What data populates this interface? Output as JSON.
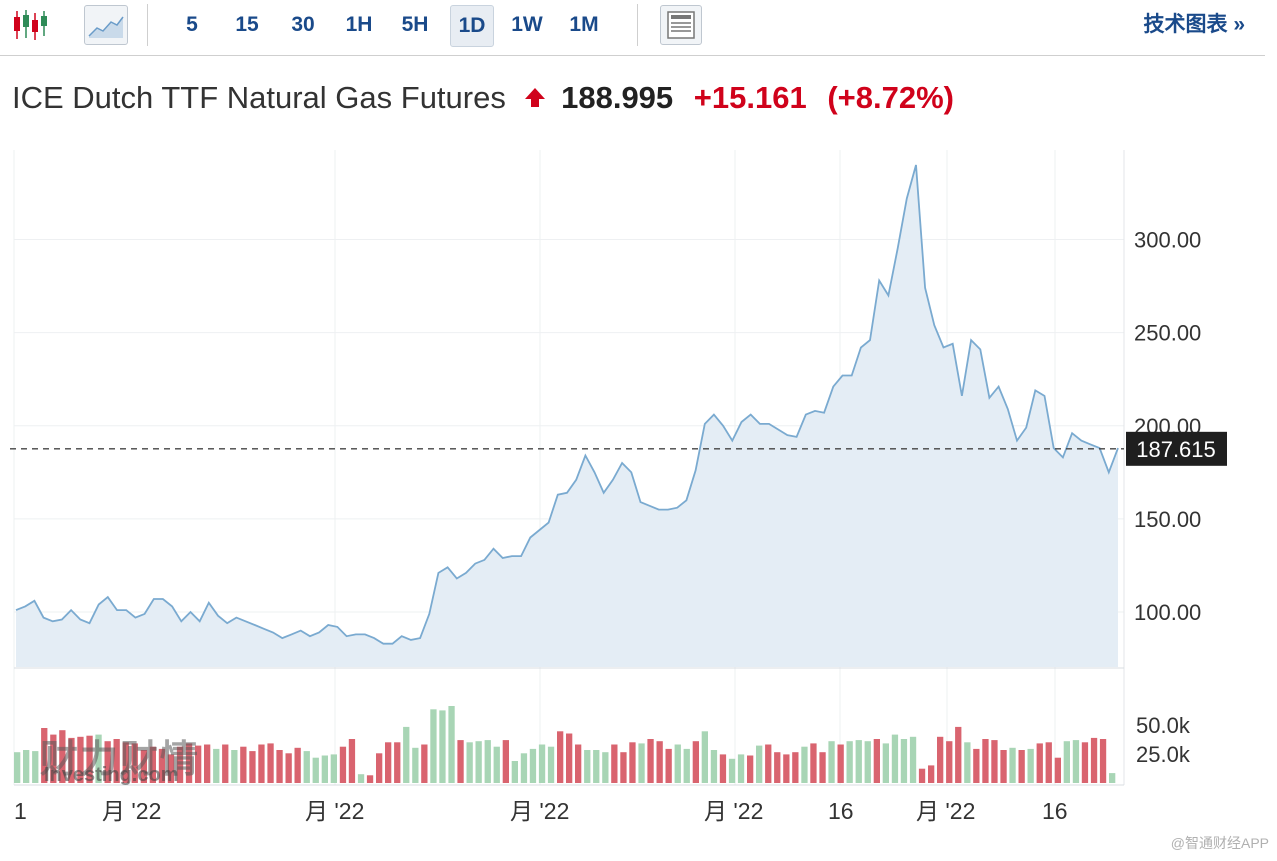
{
  "toolbar": {
    "intervals": [
      "5",
      "15",
      "30",
      "1H",
      "5H",
      "1D",
      "1W",
      "1M"
    ],
    "active_interval": "1D",
    "tech_chart_label": "技术图表 »"
  },
  "header": {
    "name": "ICE Dutch TTF Natural Gas Futures",
    "price": "188.995",
    "change": "+15.161",
    "change_pct": "(+8.72%)",
    "direction": "up",
    "up_color": "#d0021b"
  },
  "watermark": {
    "brand_cn": "财力财情",
    "brand_en": "Investing.com",
    "source": "@智通财经APP"
  },
  "chart_data": {
    "type": "area",
    "series_color": "#7aaad0",
    "fill_color": "#e4edf5",
    "last_price_label": "187.615",
    "last_price": 187.615,
    "y_ticks": [
      100,
      150,
      200,
      250,
      300
    ],
    "y_tick_labels": [
      "100.00",
      "150.00",
      "200.00",
      "250.00",
      "300.00"
    ],
    "x_labels": [
      "1",
      "月 '22",
      "月 '22",
      "月 '22",
      "月 '22",
      "16",
      "月 '22",
      "16"
    ],
    "grid": true,
    "values": [
      101,
      103,
      106,
      97,
      95,
      96,
      101,
      96,
      94,
      104,
      108,
      101,
      101,
      97,
      99,
      107,
      107,
      103,
      95,
      100,
      95,
      105,
      98,
      94,
      97,
      95,
      93,
      91,
      89,
      86,
      88,
      90,
      87,
      89,
      93,
      92,
      87,
      88,
      88,
      86,
      83,
      83,
      87,
      85,
      86,
      99,
      121,
      124,
      118,
      121,
      126,
      128,
      134,
      129,
      130,
      130,
      140,
      144,
      148,
      163,
      164,
      171,
      184,
      175,
      164,
      171,
      180,
      175,
      159,
      157,
      155,
      155,
      156,
      160,
      176,
      201,
      206,
      200,
      192,
      202,
      206,
      201,
      201,
      198,
      195,
      194,
      206,
      208,
      207,
      221,
      227,
      227,
      242,
      246,
      278,
      270,
      295,
      322,
      340,
      274,
      254,
      242,
      244,
      216,
      246,
      241,
      215,
      221,
      209,
      192,
      199,
      219,
      216,
      188,
      183,
      196,
      192,
      190,
      188,
      175,
      188
    ],
    "volume": {
      "y_tick_labels": [
        "50.0k",
        "25.0k"
      ],
      "y_ticks": [
        50000,
        25000
      ],
      "up_color": "#a8d5b5",
      "down_color": "#d9646f",
      "bars": [
        {
          "v": 28000,
          "up": true
        },
        {
          "v": 30000,
          "up": true
        },
        {
          "v": 29000,
          "up": true
        },
        {
          "v": 50000,
          "up": false
        },
        {
          "v": 44000,
          "up": false
        },
        {
          "v": 48000,
          "up": false
        },
        {
          "v": 41000,
          "up": false
        },
        {
          "v": 42000,
          "up": false
        },
        {
          "v": 43000,
          "up": false
        },
        {
          "v": 44000,
          "up": true
        },
        {
          "v": 38000,
          "up": false
        },
        {
          "v": 40000,
          "up": false
        },
        {
          "v": 37000,
          "up": false
        },
        {
          "v": 36000,
          "up": false
        },
        {
          "v": 30000,
          "up": false
        },
        {
          "v": 33000,
          "up": false
        },
        {
          "v": 31000,
          "up": false
        },
        {
          "v": 26000,
          "up": false
        },
        {
          "v": 33000,
          "up": false
        },
        {
          "v": 36000,
          "up": false
        },
        {
          "v": 34000,
          "up": false
        },
        {
          "v": 35000,
          "up": false
        },
        {
          "v": 31000,
          "up": true
        },
        {
          "v": 35000,
          "up": false
        },
        {
          "v": 30000,
          "up": true
        },
        {
          "v": 33000,
          "up": false
        },
        {
          "v": 29000,
          "up": false
        },
        {
          "v": 35000,
          "up": false
        },
        {
          "v": 36000,
          "up": false
        },
        {
          "v": 30000,
          "up": false
        },
        {
          "v": 27000,
          "up": false
        },
        {
          "v": 32000,
          "up": false
        },
        {
          "v": 29000,
          "up": true
        },
        {
          "v": 23000,
          "up": true
        },
        {
          "v": 25000,
          "up": true
        },
        {
          "v": 26000,
          "up": true
        },
        {
          "v": 33000,
          "up": false
        },
        {
          "v": 40000,
          "up": false
        },
        {
          "v": 8000,
          "up": true
        },
        {
          "v": 7000,
          "up": false
        },
        {
          "v": 27000,
          "up": false
        },
        {
          "v": 37000,
          "up": false
        },
        {
          "v": 37000,
          "up": false
        },
        {
          "v": 51000,
          "up": true
        },
        {
          "v": 32000,
          "up": true
        },
        {
          "v": 35000,
          "up": false
        },
        {
          "v": 67000,
          "up": true
        },
        {
          "v": 66000,
          "up": true
        },
        {
          "v": 70000,
          "up": true
        },
        {
          "v": 39000,
          "up": false
        },
        {
          "v": 37000,
          "up": true
        },
        {
          "v": 38000,
          "up": true
        },
        {
          "v": 39000,
          "up": true
        },
        {
          "v": 33000,
          "up": true
        },
        {
          "v": 39000,
          "up": false
        },
        {
          "v": 20000,
          "up": true
        },
        {
          "v": 27000,
          "up": true
        },
        {
          "v": 31000,
          "up": true
        },
        {
          "v": 35000,
          "up": true
        },
        {
          "v": 33000,
          "up": true
        },
        {
          "v": 47000,
          "up": false
        },
        {
          "v": 45000,
          "up": false
        },
        {
          "v": 35000,
          "up": false
        },
        {
          "v": 30000,
          "up": true
        },
        {
          "v": 30000,
          "up": true
        },
        {
          "v": 28000,
          "up": true
        },
        {
          "v": 35000,
          "up": false
        },
        {
          "v": 28000,
          "up": false
        },
        {
          "v": 37000,
          "up": false
        },
        {
          "v": 36000,
          "up": true
        },
        {
          "v": 40000,
          "up": false
        },
        {
          "v": 38000,
          "up": false
        },
        {
          "v": 31000,
          "up": false
        },
        {
          "v": 35000,
          "up": true
        },
        {
          "v": 31000,
          "up": true
        },
        {
          "v": 38000,
          "up": false
        },
        {
          "v": 47000,
          "up": true
        },
        {
          "v": 30000,
          "up": true
        },
        {
          "v": 26000,
          "up": false
        },
        {
          "v": 22000,
          "up": true
        },
        {
          "v": 26000,
          "up": true
        },
        {
          "v": 25000,
          "up": false
        },
        {
          "v": 34000,
          "up": true
        },
        {
          "v": 35000,
          "up": false
        },
        {
          "v": 28000,
          "up": false
        },
        {
          "v": 26000,
          "up": false
        },
        {
          "v": 28000,
          "up": false
        },
        {
          "v": 33000,
          "up": true
        },
        {
          "v": 36000,
          "up": false
        },
        {
          "v": 28000,
          "up": false
        },
        {
          "v": 38000,
          "up": true
        },
        {
          "v": 35000,
          "up": false
        },
        {
          "v": 38000,
          "up": true
        },
        {
          "v": 39000,
          "up": true
        },
        {
          "v": 38000,
          "up": true
        },
        {
          "v": 40000,
          "up": false
        },
        {
          "v": 36000,
          "up": true
        },
        {
          "v": 44000,
          "up": true
        },
        {
          "v": 40000,
          "up": true
        },
        {
          "v": 42000,
          "up": true
        },
        {
          "v": 13000,
          "up": false
        },
        {
          "v": 16000,
          "up": false
        },
        {
          "v": 42000,
          "up": false
        },
        {
          "v": 38000,
          "up": false
        },
        {
          "v": 51000,
          "up": false
        },
        {
          "v": 37000,
          "up": true
        },
        {
          "v": 31000,
          "up": false
        },
        {
          "v": 40000,
          "up": false
        },
        {
          "v": 39000,
          "up": false
        },
        {
          "v": 30000,
          "up": false
        },
        {
          "v": 32000,
          "up": true
        },
        {
          "v": 30000,
          "up": false
        },
        {
          "v": 31000,
          "up": true
        },
        {
          "v": 36000,
          "up": false
        },
        {
          "v": 37000,
          "up": false
        },
        {
          "v": 23000,
          "up": false
        },
        {
          "v": 38000,
          "up": true
        },
        {
          "v": 39000,
          "up": true
        },
        {
          "v": 37000,
          "up": false
        },
        {
          "v": 41000,
          "up": false
        },
        {
          "v": 40000,
          "up": false
        },
        {
          "v": 9000,
          "up": true
        }
      ]
    }
  }
}
